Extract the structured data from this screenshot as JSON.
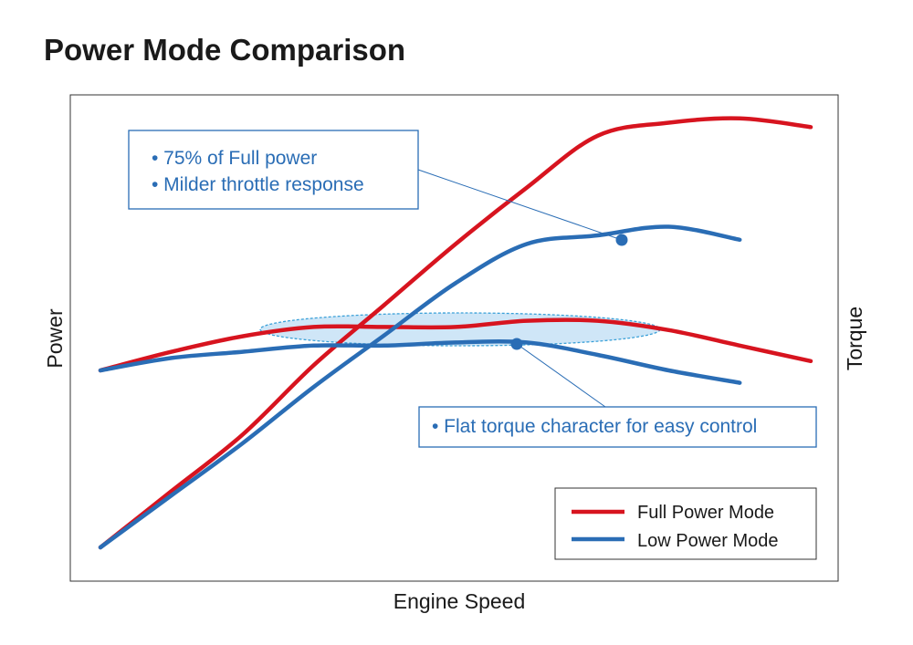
{
  "chart_data": {
    "type": "line",
    "title": "Power Mode Comparison",
    "xlabel": "Engine Speed",
    "ylabel_left": "Power",
    "ylabel_right": "Torque",
    "grid": false,
    "legend_position": "bottom-right",
    "colors": {
      "full": "#d7141f",
      "low": "#2a6db5"
    },
    "series": [
      {
        "name": "Full Power Mode",
        "kind": "power",
        "color": "#d7141f",
        "points": [
          [
            0,
            0
          ],
          [
            10,
            13
          ],
          [
            20,
            26
          ],
          [
            30,
            42
          ],
          [
            40,
            56
          ],
          [
            50,
            70
          ],
          [
            60,
            83
          ],
          [
            70,
            95
          ],
          [
            80,
            98
          ],
          [
            90,
            99
          ],
          [
            100,
            97
          ]
        ]
      },
      {
        "name": "Full Power Mode",
        "kind": "torque",
        "color": "#d7141f",
        "points": [
          [
            0,
            41
          ],
          [
            10,
            47
          ],
          [
            20,
            52
          ],
          [
            30,
            55
          ],
          [
            40,
            55
          ],
          [
            50,
            55
          ],
          [
            60,
            57
          ],
          [
            70,
            57
          ],
          [
            80,
            54
          ],
          [
            90,
            49
          ],
          [
            100,
            44
          ]
        ]
      },
      {
        "name": "Low Power Mode",
        "kind": "power",
        "color": "#2a6db5",
        "points": [
          [
            0,
            0
          ],
          [
            10,
            12
          ],
          [
            20,
            24
          ],
          [
            30,
            37
          ],
          [
            40,
            49
          ],
          [
            50,
            61
          ],
          [
            60,
            70
          ],
          [
            70,
            72
          ],
          [
            80,
            74
          ],
          [
            90,
            71
          ]
        ]
      },
      {
        "name": "Low Power Mode",
        "kind": "torque",
        "color": "#2a6db5",
        "points": [
          [
            0,
            41
          ],
          [
            10,
            45
          ],
          [
            20,
            47
          ],
          [
            30,
            49
          ],
          [
            40,
            49
          ],
          [
            50,
            50
          ],
          [
            60,
            50
          ],
          [
            70,
            46
          ],
          [
            80,
            41
          ],
          [
            90,
            37
          ]
        ]
      }
    ],
    "legend": [
      {
        "label": "Full Power Mode",
        "color": "#d7141f"
      },
      {
        "label": "Low Power Mode",
        "color": "#2a6db5"
      }
    ],
    "annotations": [
      {
        "id": "power",
        "lines": [
          "• 75% of Full power",
          "• Milder throttle response"
        ],
        "color": "#2a6db5"
      },
      {
        "id": "torque",
        "lines": [
          "• Flat torque character for easy control"
        ],
        "color": "#2a6db5"
      }
    ]
  }
}
